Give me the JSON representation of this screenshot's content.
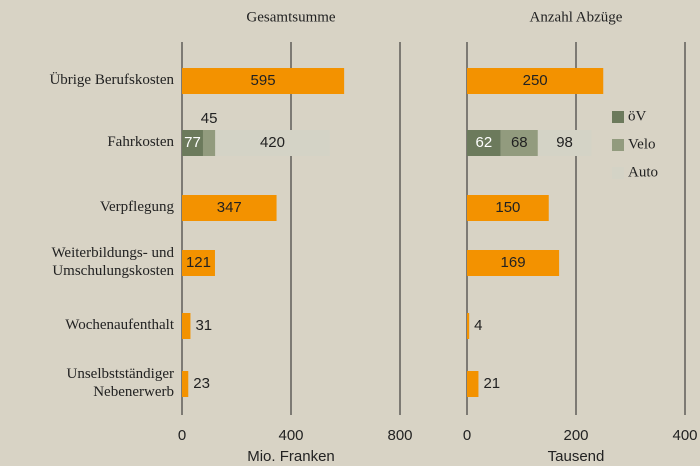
{
  "chart_data": [
    {
      "type": "bar",
      "title": "Gesamtsumme",
      "xlabel": "Mio. Franken",
      "categories": [
        "Übrige Berufskosten",
        "Fahrkosten",
        "Verpflegung",
        "Weiterbildungs- und\nUmschulungskosten",
        "Wochenaufenthalt",
        "Unselbstständiger\nNebenerwerb"
      ],
      "series": [
        {
          "color": "#f39200",
          "values": [
            595,
            null,
            347,
            121,
            31,
            23
          ]
        },
        {
          "color": "#6c7a5c",
          "values": [
            null,
            77,
            null,
            null,
            null,
            null
          ]
        },
        {
          "color": "#929b7e",
          "values": [
            null,
            45,
            null,
            null,
            null,
            null
          ]
        },
        {
          "color": "#d4d3c6",
          "values": [
            null,
            420,
            null,
            null,
            null,
            null
          ]
        }
      ],
      "xlim": [
        0,
        800
      ],
      "xticks": [
        0,
        400,
        800
      ]
    },
    {
      "type": "bar",
      "title": "Anzahl Abzüge",
      "xlabel": "Tausend",
      "series": [
        {
          "color": "#f39200",
          "values": [
            250,
            null,
            150,
            169,
            4,
            21
          ]
        },
        {
          "name": "öV",
          "color": "#6c7a5c",
          "values": [
            null,
            62,
            null,
            null,
            null,
            null
          ]
        },
        {
          "name": "Velo",
          "color": "#929b7e",
          "values": [
            null,
            68,
            null,
            null,
            null,
            null
          ]
        },
        {
          "name": "Auto",
          "color": "#d4d3c6",
          "values": [
            null,
            98,
            null,
            null,
            null,
            null
          ]
        }
      ],
      "xlim": [
        0,
        400
      ],
      "xticks": [
        0,
        200,
        400
      ],
      "legend": "right"
    }
  ]
}
